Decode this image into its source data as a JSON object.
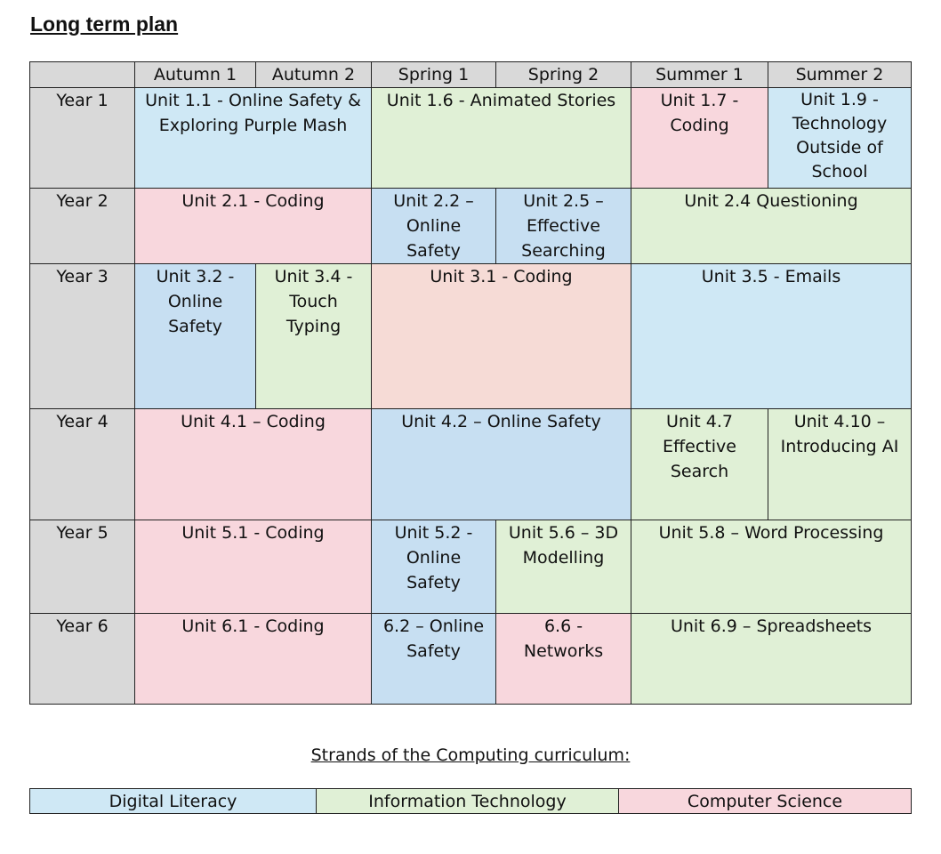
{
  "title": "Long term plan",
  "columns": [
    "Autumn 1",
    "Autumn 2",
    "Spring 1",
    "Spring 2",
    "Summer 1",
    "Summer 2"
  ],
  "years": [
    "Year 1",
    "Year 2",
    "Year 3",
    "Year 4",
    "Year 5",
    "Year 6"
  ],
  "units": {
    "y1_a": "Unit 1.1 - Online Safety & Exploring Purple Mash",
    "y1_b": "Unit 1.6 - Animated Stories",
    "y1_c": "Unit 1.7 - Coding",
    "y1_d": "Unit 1.9 - Technology Outside of School",
    "y2_a": "Unit 2.1 - Coding",
    "y2_b": "Unit 2.2 – Online Safety",
    "y2_c": "Unit 2.5 – Effective Searching",
    "y2_d": "Unit 2.4 Questioning",
    "y3_a": "Unit 3.2 - Online Safety",
    "y3_b": "Unit 3.4 - Touch Typing",
    "y3_c": "Unit 3.1 - Coding",
    "y3_d": "Unit 3.5 - Emails",
    "y4_a": "Unit 4.1 – Coding",
    "y4_b": "Unit 4.2 – Online Safety",
    "y4_c": "Unit 4.7 Effective Search",
    "y4_d": "Unit 4.10 – Introducing AI",
    "y5_a": "Unit 5.1 - Coding",
    "y5_b": "Unit 5.2 - Online Safety",
    "y5_c": "Unit 5.6 – 3D Modelling",
    "y5_d": "Unit 5.8 – Word Processing",
    "y6_a": "Unit 6.1 - Coding",
    "y6_b": "6.2 – Online Safety",
    "y6_c": "6.6 - Networks",
    "y6_d": "Unit 6.9 – Spreadsheets"
  },
  "legend": {
    "title": "Strands of the Computing curriculum:",
    "items": [
      "Digital Literacy",
      "Information Technology",
      "Computer Science"
    ]
  },
  "colors": {
    "digital_literacy": "#cfe8f5",
    "information_technology": "#e0f0d6",
    "computer_science": "#f8d7dd",
    "header": "#d9d9d9"
  }
}
